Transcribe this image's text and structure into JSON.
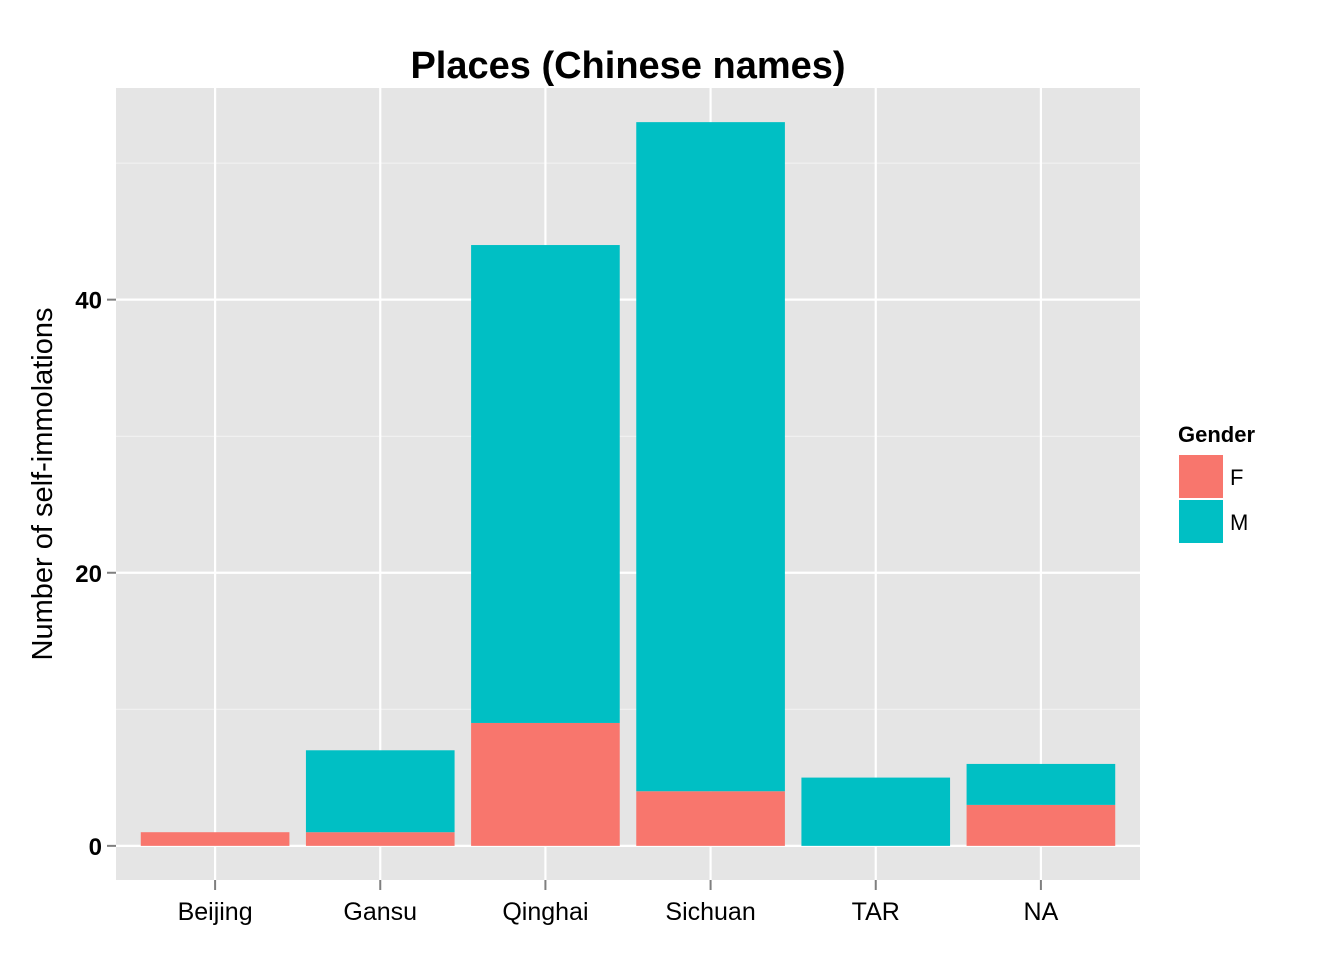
{
  "chart_data": {
    "type": "bar",
    "stacked": true,
    "title": "Places (Chinese names)",
    "xlabel": "",
    "ylabel": "Number of self-immolations",
    "categories": [
      "Beijing",
      "Gansu",
      "Qinghai",
      "Sichuan",
      "TAR",
      "NA"
    ],
    "series": [
      {
        "name": "F",
        "color": "#F8766D",
        "values": [
          1,
          1,
          9,
          4,
          0,
          3
        ]
      },
      {
        "name": "M",
        "color": "#00BFC4",
        "values": [
          0,
          6,
          35,
          49,
          5,
          3
        ]
      }
    ],
    "ylim": [
      -2.5,
      55.5
    ],
    "yticks": [
      0,
      20,
      40
    ],
    "ytick_labels": [
      "0",
      "20",
      "40"
    ],
    "grid": true,
    "legend": {
      "title": "Gender",
      "placement": "right"
    },
    "panel_color": "#E5E5E5",
    "grid_color": "#FFFFFF"
  }
}
